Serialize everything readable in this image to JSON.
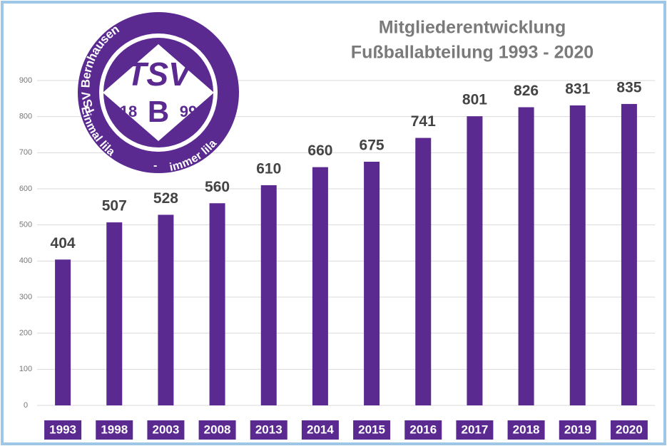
{
  "chart_data": {
    "type": "bar",
    "title": "Mitgliederentwicklung",
    "subtitle": "Fußballabteilung 1993 - 2020",
    "categories": [
      "1993",
      "1998",
      "2003",
      "2008",
      "2013",
      "2014",
      "2015",
      "2016",
      "2017",
      "2018",
      "2019",
      "2020"
    ],
    "values": [
      404,
      507,
      528,
      560,
      610,
      660,
      675,
      741,
      801,
      826,
      831,
      835
    ],
    "color": "#5b2a91",
    "ylim": [
      0,
      900
    ],
    "yticks": [
      0,
      100,
      200,
      300,
      400,
      500,
      600,
      700,
      800,
      900
    ],
    "grid": true
  },
  "logo": {
    "ring_top": "TSV Bernhausen",
    "ring_left": "Einmal lila",
    "ring_dash": "-",
    "ring_right": "immer lila",
    "letters": "TSV",
    "year_left": "18",
    "letter_b": "B",
    "year_right": "99"
  }
}
